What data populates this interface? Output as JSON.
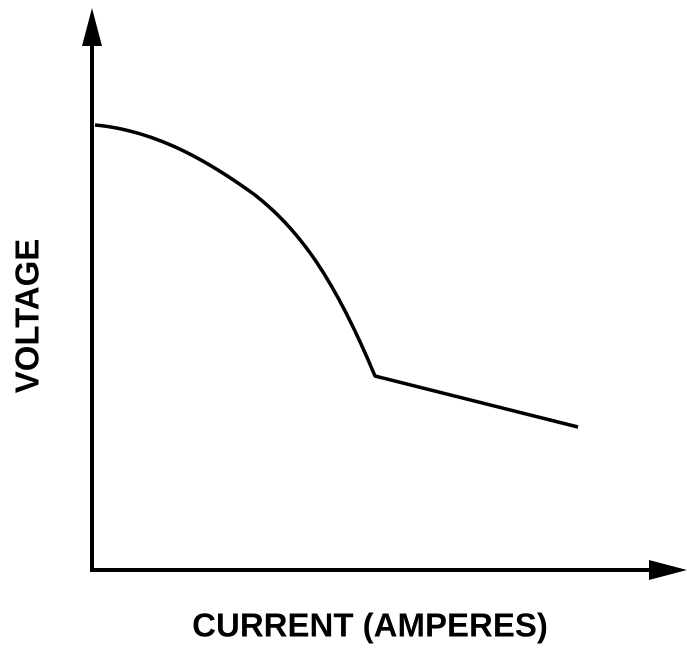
{
  "axes": {
    "y_label": "VOLTAGE",
    "x_label": "CURRENT (AMPERES)"
  }
}
